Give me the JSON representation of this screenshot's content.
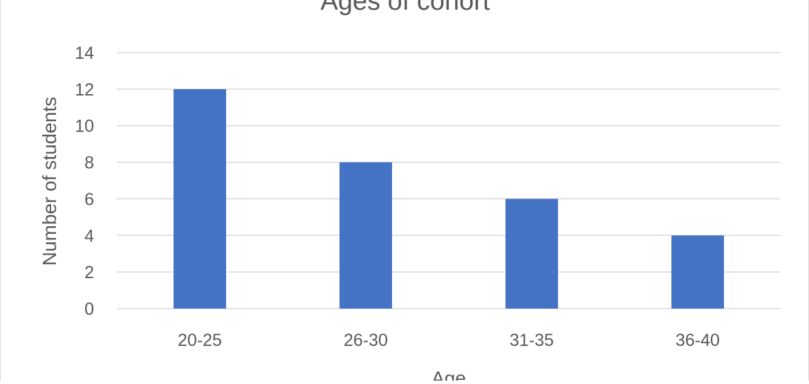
{
  "chart_data": {
    "type": "bar",
    "title": "Ages of cohort",
    "xlabel": "Age",
    "ylabel": "Number of students",
    "categories": [
      "20-25",
      "26-30",
      "31-35",
      "36-40"
    ],
    "values": [
      12,
      8,
      6,
      4
    ],
    "ylim": [
      0,
      14
    ],
    "yticks": [
      0,
      2,
      4,
      6,
      8,
      10,
      12,
      14
    ],
    "grid": true,
    "legend": "none",
    "bar_color": "#4472c4",
    "grid_color": "#d9d9d9",
    "text_color": "#595959"
  }
}
